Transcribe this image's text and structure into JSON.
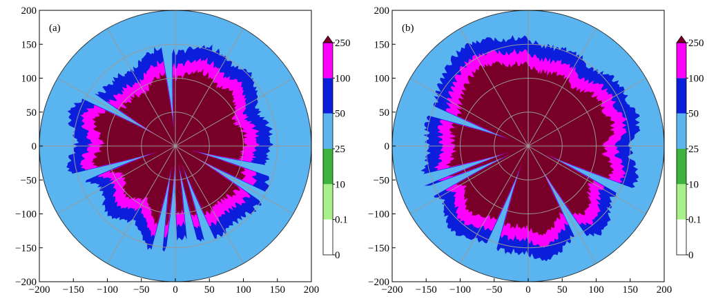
{
  "chart_data": [
    {
      "type": "polar-contour",
      "panel_label": "(a)",
      "xlim": [
        -200,
        200
      ],
      "ylim": [
        -200,
        200
      ],
      "xticks": [
        "−200",
        "−150",
        "−100",
        "−50",
        "0",
        "50",
        "100",
        "150",
        "200"
      ],
      "yticks": [
        "200",
        "150",
        "100",
        "50",
        "0",
        "−50",
        "−100",
        "−150",
        "−200"
      ],
      "range_rings": [
        50,
        100,
        150
      ],
      "outer_radius": 200,
      "spoke_angles_deg": [
        0,
        30,
        60,
        90,
        120,
        150,
        180,
        210,
        240,
        270,
        300,
        330
      ],
      "shape_seed": 1,
      "core_radius": 105,
      "beam_blockage_deg": [
        95,
        150,
        198,
        260,
        268,
        280,
        290,
        330,
        345
      ]
    },
    {
      "type": "polar-contour",
      "panel_label": "(b)",
      "xlim": [
        -200,
        200
      ],
      "ylim": [
        -200,
        200
      ],
      "xticks": [
        "−200",
        "−150",
        "−100",
        "−50",
        "0",
        "50",
        "100",
        "150",
        "200"
      ],
      "yticks": [
        "200",
        "150",
        "100",
        "50",
        "0",
        "−50",
        "−100",
        "−150",
        "−200"
      ],
      "range_rings": [
        50,
        100,
        150
      ],
      "outer_radius": 200,
      "spoke_angles_deg": [
        0,
        30,
        60,
        90,
        120,
        150,
        180,
        210,
        240,
        270,
        300,
        330
      ],
      "shape_seed": 2,
      "core_radius": 120,
      "beam_blockage_deg": [
        160,
        198,
        205,
        250,
        300,
        335
      ]
    }
  ],
  "colorbar": {
    "levels": [
      "0",
      "0.1",
      "10",
      "25",
      "50",
      "100",
      "250"
    ],
    "colors": [
      "#ffffff",
      "#a8f08a",
      "#3cb43c",
      "#5ab4f0",
      "#0a1edc",
      "#ff00ff",
      "#780028"
    ],
    "extend": "max"
  },
  "colors": {
    "background_disc": "#5ab4f0",
    "grid": "#999999"
  }
}
